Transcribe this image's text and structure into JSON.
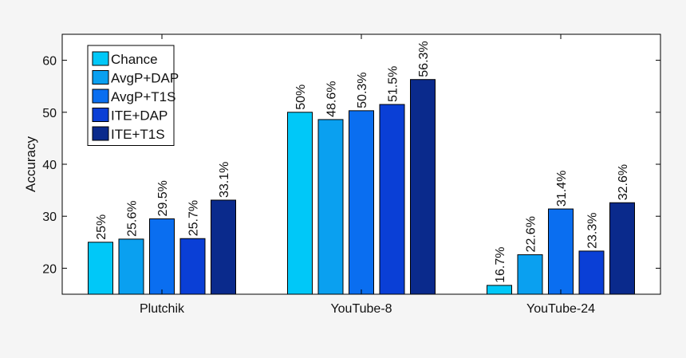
{
  "chart_data": {
    "type": "bar",
    "title": "",
    "xlabel": "",
    "ylabel": "Accuracy",
    "ylim": [
      15,
      65
    ],
    "yticks": [
      20,
      30,
      40,
      50,
      60
    ],
    "grid": false,
    "legend_position": "top-left",
    "categories": [
      "Plutchik",
      "YouTube-8",
      "YouTube-24"
    ],
    "series": [
      {
        "name": "Chance",
        "color": "#00c8f8",
        "values": [
          25,
          50,
          16.7
        ],
        "labels": [
          "25%",
          "50%",
          "16.7%"
        ]
      },
      {
        "name": "AvgP+DAP",
        "color": "#0aa0f0",
        "values": [
          25.6,
          48.6,
          22.6
        ],
        "labels": [
          "25.6%",
          "48.6%",
          "22.6%"
        ]
      },
      {
        "name": "AvgP+T1S",
        "color": "#0a6ef0",
        "values": [
          29.5,
          50.3,
          31.4
        ],
        "labels": [
          "29.5%",
          "50.3%",
          "31.4%"
        ]
      },
      {
        "name": "ITE+DAP",
        "color": "#0a3fd6",
        "values": [
          25.7,
          51.5,
          23.3
        ],
        "labels": [
          "25.7%",
          "51.5%",
          "23.3%"
        ]
      },
      {
        "name": "ITE+T1S",
        "color": "#0a2a8c",
        "values": [
          33.1,
          56.3,
          32.6
        ],
        "labels": [
          "33.1%",
          "56.3%",
          "32.6%"
        ]
      }
    ]
  }
}
